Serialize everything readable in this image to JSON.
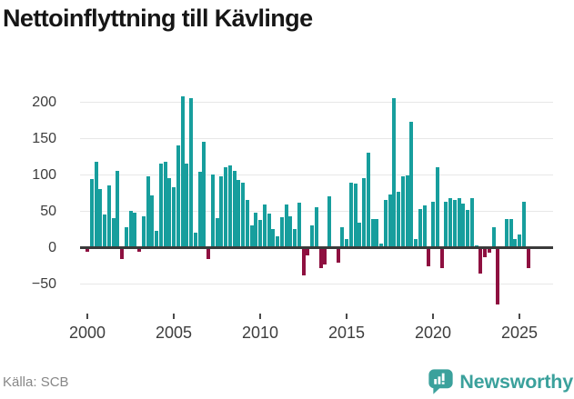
{
  "header": {
    "title": "Nettoinflyttning till Kävlinge"
  },
  "footer": {
    "source": "Källa: SCB",
    "brand": "Newsworthy"
  },
  "colors": {
    "positive": "#179e9d",
    "negative": "#8e1040",
    "grid": "#e7e7e7",
    "axis": "#3a3a3a",
    "tick_label": "#3d3d3d",
    "title": "#161616",
    "source": "#878787",
    "brand": "#3ba19c"
  },
  "chart_data": {
    "type": "bar",
    "title": "Nettoinflyttning till Kävlinge",
    "xlabel": "",
    "ylabel": "",
    "frequency": "quarterly",
    "x_start": "2000-Q1",
    "x_end": "2025-Q3",
    "x_tick_labels": [
      "2000",
      "2005",
      "2010",
      "2015",
      "2020",
      "2025"
    ],
    "x_tick_years": [
      2000,
      2005,
      2010,
      2015,
      2020,
      2025
    ],
    "y_ticks": [
      200,
      150,
      100,
      50,
      0,
      -50
    ],
    "y_tick_labels": [
      "200",
      "150",
      "100",
      "50",
      "0",
      "−50"
    ],
    "ylim": [
      -85,
      220
    ],
    "grid": true,
    "legend": "none",
    "values": [
      -5,
      94,
      118,
      80,
      45,
      85,
      40,
      105,
      -15,
      27,
      50,
      48,
      -5,
      42,
      97,
      71,
      23,
      115,
      118,
      95,
      82,
      140,
      207,
      115,
      205,
      20,
      104,
      145,
      -15,
      100,
      40,
      97,
      110,
      113,
      105,
      93,
      89,
      65,
      30,
      47,
      37,
      59,
      46,
      25,
      15,
      41,
      59,
      42,
      25,
      61,
      -37,
      -10,
      30,
      55,
      -27,
      -22,
      70,
      0,
      -20,
      27,
      11,
      89,
      88,
      34,
      95,
      130,
      39,
      39,
      5,
      65,
      73,
      205,
      76,
      98,
      99,
      172,
      11,
      53,
      58,
      -25,
      62,
      110,
      -27,
      62,
      67,
      65,
      68,
      60,
      51,
      68,
      3,
      -35,
      -12,
      -6,
      28,
      -78,
      0,
      39,
      39,
      11,
      17,
      63,
      -27
    ]
  }
}
